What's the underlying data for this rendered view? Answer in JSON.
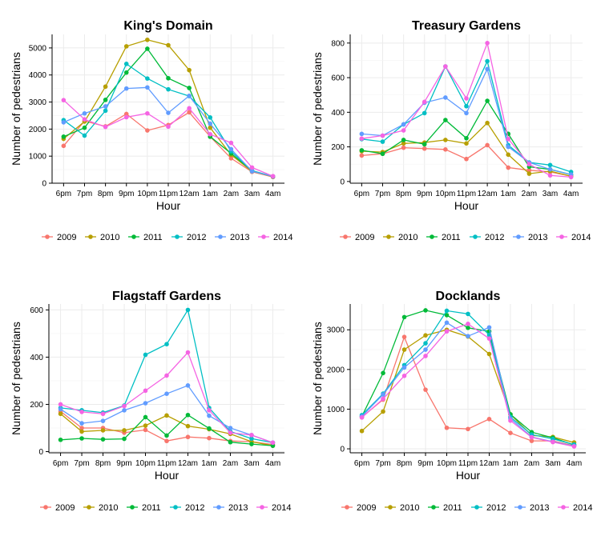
{
  "colors": {
    "2009": "#F8766D",
    "2010": "#B79F00",
    "2011": "#00BA38",
    "2012": "#00BFC4",
    "2013": "#619CFF",
    "2014": "#F564E3"
  },
  "chart_data": [
    {
      "type": "line",
      "title": "King's Domain",
      "xlabel": "Hour",
      "ylabel": "Number of pedestrians",
      "categories": [
        "6pm",
        "7pm",
        "8pm",
        "9pm",
        "10pm",
        "11pm",
        "12am",
        "1am",
        "2am",
        "3am",
        "4am"
      ],
      "ylim": [
        0,
        5500
      ],
      "yticks": [
        0,
        1000,
        2000,
        3000,
        4000,
        5000
      ],
      "grid": true,
      "legend": "bottom",
      "series": [
        {
          "name": "2009",
          "values": [
            1380,
            2300,
            2100,
            2560,
            1950,
            2150,
            2620,
            1720,
            920,
            420,
            230
          ]
        },
        {
          "name": "2010",
          "values": [
            1640,
            2280,
            3570,
            5060,
            5300,
            5100,
            4180,
            2050,
            1050,
            440,
            240
          ]
        },
        {
          "name": "2011",
          "values": [
            1720,
            2050,
            3080,
            4090,
            4970,
            3880,
            3520,
            1720,
            1100,
            460,
            250
          ]
        },
        {
          "name": "2012",
          "values": [
            2330,
            1760,
            2680,
            4410,
            3870,
            3470,
            3220,
            2430,
            1180,
            460,
            250
          ]
        },
        {
          "name": "2013",
          "values": [
            2250,
            2580,
            2840,
            3500,
            3540,
            2600,
            3230,
            2200,
            1260,
            440,
            250
          ]
        },
        {
          "name": "2014",
          "values": [
            3070,
            2360,
            2080,
            2440,
            2580,
            2090,
            2770,
            1810,
            1490,
            580,
            260
          ]
        }
      ]
    },
    {
      "type": "line",
      "title": "Treasury Gardens",
      "xlabel": "Hour",
      "ylabel": "Number of pedestrians",
      "categories": [
        "6pm",
        "7pm",
        "8pm",
        "9pm",
        "10pm",
        "11pm",
        "12am",
        "1am",
        "2am",
        "3am",
        "4am"
      ],
      "ylim": [
        -10,
        850
      ],
      "yticks": [
        0,
        200,
        400,
        600,
        800
      ],
      "grid": true,
      "legend": "bottom",
      "series": [
        {
          "name": "2009",
          "values": [
            150,
            160,
            195,
            190,
            185,
            130,
            210,
            80,
            65,
            55,
            30
          ]
        },
        {
          "name": "2010",
          "values": [
            175,
            170,
            220,
            225,
            240,
            220,
            338,
            155,
            45,
            60,
            30
          ]
        },
        {
          "name": "2011",
          "values": [
            180,
            160,
            240,
            215,
            355,
            250,
            466,
            275,
            85,
            70,
            40
          ]
        },
        {
          "name": "2012",
          "values": [
            245,
            230,
            330,
            395,
            665,
            435,
            695,
            210,
            110,
            95,
            55
          ]
        },
        {
          "name": "2013",
          "values": [
            275,
            265,
            330,
            455,
            485,
            395,
            650,
            200,
            110,
            70,
            40
          ]
        },
        {
          "name": "2014",
          "values": [
            248,
            265,
            295,
            460,
            665,
            480,
            800,
            245,
            100,
            35,
            25
          ]
        }
      ]
    },
    {
      "type": "line",
      "title": "Flagstaff Gardens",
      "xlabel": "Hour",
      "ylabel": "Number of pedestrians",
      "categories": [
        "6pm",
        "7pm",
        "8pm",
        "9pm",
        "10pm",
        "11pm",
        "12am",
        "1am",
        "2am",
        "3am",
        "4am"
      ],
      "ylim": [
        -5,
        625
      ],
      "yticks": [
        0,
        200,
        400,
        600
      ],
      "grid": true,
      "legend": "bottom",
      "series": [
        {
          "name": "2009",
          "values": [
            170,
            100,
            100,
            80,
            92,
            45,
            62,
            57,
            45,
            42,
            30
          ]
        },
        {
          "name": "2010",
          "values": [
            160,
            85,
            90,
            90,
            110,
            153,
            108,
            95,
            75,
            42,
            25
          ]
        },
        {
          "name": "2011",
          "values": [
            50,
            56,
            52,
            54,
            146,
            68,
            155,
            98,
            40,
            32,
            25
          ]
        },
        {
          "name": "2012",
          "values": [
            185,
            175,
            165,
            195,
            410,
            455,
            600,
            185,
            85,
            55,
            38
          ]
        },
        {
          "name": "2013",
          "values": [
            180,
            120,
            130,
            175,
            205,
            245,
            280,
            152,
            100,
            70,
            38
          ]
        },
        {
          "name": "2014",
          "values": [
            200,
            168,
            160,
            193,
            258,
            322,
            420,
            175,
            80,
            70,
            38
          ]
        }
      ]
    },
    {
      "type": "line",
      "title": "Docklands",
      "xlabel": "Hour",
      "ylabel": "Number of pedestrians",
      "categories": [
        "6pm",
        "7pm",
        "8pm",
        "9pm",
        "10pm",
        "11pm",
        "12am",
        "1am",
        "2am",
        "3am",
        "4am"
      ],
      "ylim": [
        -100,
        3650
      ],
      "yticks": [
        0,
        1000,
        2000,
        3000
      ],
      "grid": true,
      "legend": "bottom",
      "series": [
        {
          "name": "2009",
          "values": [
            800,
            1240,
            2820,
            1490,
            530,
            500,
            750,
            400,
            200,
            200,
            80
          ]
        },
        {
          "name": "2010",
          "values": [
            450,
            940,
            2500,
            2860,
            3000,
            2830,
            2390,
            870,
            340,
            300,
            160
          ]
        },
        {
          "name": "2011",
          "values": [
            820,
            1910,
            3320,
            3490,
            3370,
            3050,
            2960,
            870,
            420,
            280,
            100
          ]
        },
        {
          "name": "2012",
          "values": [
            850,
            1390,
            2110,
            2660,
            3480,
            3400,
            2870,
            800,
            360,
            250,
            110
          ]
        },
        {
          "name": "2013",
          "values": [
            820,
            1370,
            2050,
            2500,
            3180,
            2840,
            3060,
            760,
            300,
            180,
            70
          ]
        },
        {
          "name": "2014",
          "values": [
            790,
            1260,
            1840,
            2340,
            2960,
            3150,
            2780,
            710,
            290,
            170,
            60
          ]
        }
      ]
    }
  ]
}
